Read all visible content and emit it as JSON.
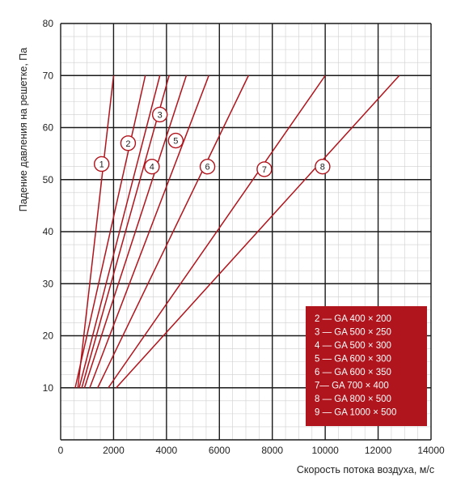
{
  "chart_data": {
    "type": "line",
    "xlabel": "Скорость потока воздуха, м/с",
    "ylabel": "Падение давления на решетке, Па",
    "xlim": [
      0,
      14000
    ],
    "ylim": [
      0,
      80
    ],
    "x_ticks": [
      "0",
      "2000",
      "4000",
      "6000",
      "8000",
      "10000",
      "12000",
      "14000"
    ],
    "y_ticks": [
      "10",
      "20",
      "30",
      "40",
      "50",
      "60",
      "70",
      "80"
    ],
    "grid": true,
    "line_color": "#b0141c",
    "series": [
      {
        "name": "1",
        "x": [
          650,
          2000
        ],
        "y": [
          10,
          70
        ],
        "label_at": {
          "x": 1550,
          "y": 53
        }
      },
      {
        "name": "2",
        "x": [
          550,
          3200
        ],
        "y": [
          10,
          70
        ],
        "label_at": {
          "x": 2550,
          "y": 57
        }
      },
      {
        "name": "3",
        "x": [
          700,
          3750
        ],
        "y": [
          10,
          70
        ],
        "label_at": {
          "x": 3750,
          "y": 62.5
        }
      },
      {
        "name": "4",
        "x": [
          800,
          4100
        ],
        "y": [
          10,
          70
        ],
        "label_at": {
          "x": 3450,
          "y": 52.5
        }
      },
      {
        "name": "5",
        "x": [
          900,
          4750
        ],
        "y": [
          10,
          70
        ],
        "label_at": {
          "x": 4350,
          "y": 57.5
        }
      },
      {
        "name": "6",
        "x": [
          1100,
          5600
        ],
        "y": [
          10,
          70
        ],
        "label_at": {
          "x": 5550,
          "y": 52.5
        }
      },
      {
        "name": "7",
        "x": [
          1400,
          7100
        ],
        "y": [
          10,
          70
        ],
        "label_at": {
          "x": 7700,
          "y": 52
        }
      },
      {
        "name": "8",
        "x": [
          1800,
          10000
        ],
        "y": [
          10,
          70
        ],
        "label_at": {
          "x": 9900,
          "y": 52.5
        }
      },
      {
        "name": "9",
        "x": [
          2100,
          12800
        ],
        "y": [
          10,
          70
        ],
        "label_at": null
      }
    ],
    "legend": {
      "placement": "bottom-right",
      "background": "#b0141c",
      "items": [
        "2 — GA 400 × 200",
        "3 — GA 500 × 250",
        "4 — GA 500 × 300",
        "5 — GA 600 × 300",
        "6 — GA 600 × 350",
        "7— GA 700 × 400",
        "8 — GA 800 × 500",
        "9 — GA 1000 × 500"
      ]
    }
  }
}
